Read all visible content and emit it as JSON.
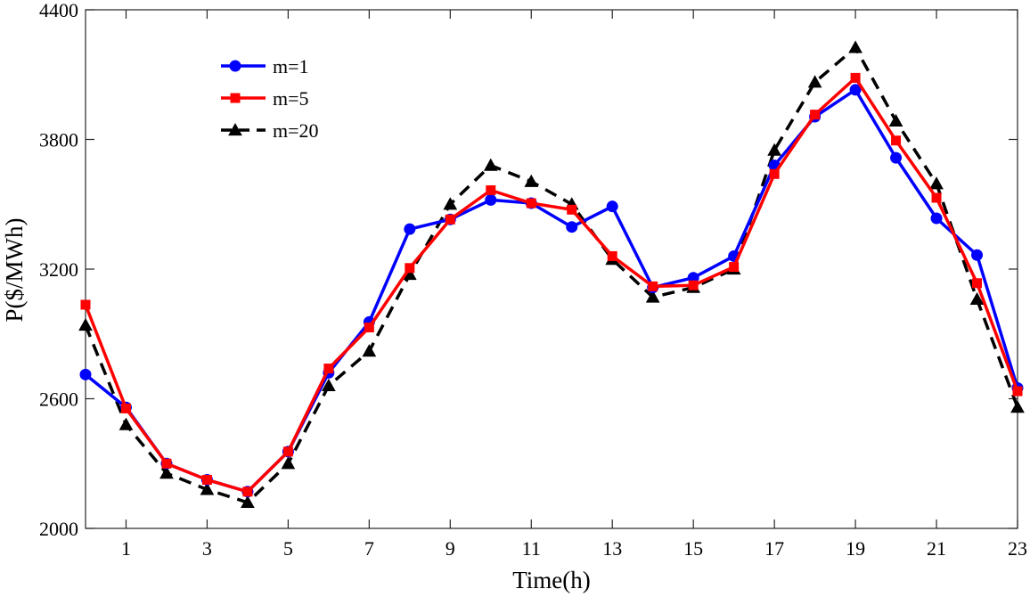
{
  "chart_data": {
    "type": "line",
    "title": "",
    "xlabel": "Time(h)",
    "ylabel": "P($/MWh)",
    "x": [
      0,
      1,
      2,
      3,
      4,
      5,
      6,
      7,
      8,
      9,
      10,
      11,
      12,
      13,
      14,
      15,
      16,
      17,
      18,
      19,
      20,
      21,
      22,
      23
    ],
    "xlim": [
      0,
      23
    ],
    "ylim": [
      2000,
      4400
    ],
    "xticks": [
      1,
      3,
      5,
      7,
      9,
      11,
      13,
      15,
      17,
      19,
      21,
      23
    ],
    "xtick_labels": [
      "1",
      "3",
      "5",
      "7",
      "9",
      "11",
      "13",
      "15",
      "17",
      "19",
      "21",
      "23"
    ],
    "yticks": [
      2000,
      2600,
      3200,
      3800,
      4400
    ],
    "ytick_labels": [
      "2000",
      "2600",
      "3200",
      "3800",
      "4400"
    ],
    "grid": false,
    "legend_position": "top-left",
    "series": [
      {
        "name": "m=1",
        "color": "#0000FF",
        "marker": "circle",
        "dash": "solid",
        "values": [
          2712,
          2560,
          2300,
          2225,
          2170,
          2355,
          2720,
          2955,
          3385,
          3430,
          3520,
          3505,
          3395,
          3490,
          3115,
          3160,
          3260,
          3680,
          3905,
          4030,
          3715,
          3435,
          3265,
          2650
        ]
      },
      {
        "name": "m=5",
        "color": "#FF0000",
        "marker": "square",
        "dash": "solid",
        "values": [
          3035,
          2555,
          2300,
          2225,
          2170,
          2355,
          2740,
          2930,
          3205,
          3430,
          3565,
          3505,
          3475,
          3260,
          3120,
          3125,
          3210,
          3640,
          3915,
          4085,
          3795,
          3530,
          3135,
          2635
        ]
      },
      {
        "name": "m=20",
        "color": "#000000",
        "marker": "triangle",
        "dash": "dashed",
        "values": [
          2940,
          2480,
          2255,
          2180,
          2120,
          2300,
          2660,
          2820,
          3175,
          3500,
          3680,
          3605,
          3500,
          3245,
          3070,
          3115,
          3200,
          3750,
          4065,
          4225,
          3885,
          3595,
          3060,
          2560
        ]
      }
    ]
  }
}
